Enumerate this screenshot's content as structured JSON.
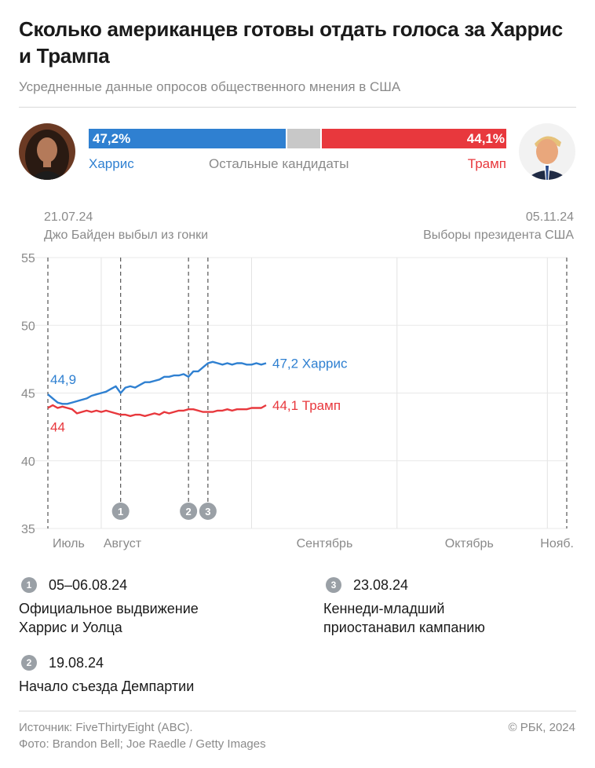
{
  "header": {
    "title": "Сколько американцев готовы отдать голоса за Харрис и Трампа",
    "subtitle": "Усредненные данные опросов общественного мнения в США"
  },
  "summary": {
    "harris_pct": "47,2%",
    "trump_pct": "44,1%",
    "harris_label": "Харрис",
    "others_label": "Остальные кандидаты",
    "trump_label": "Трамп",
    "harris_value": 47.2,
    "trump_value": 44.1,
    "harris_color": "#2f80d1",
    "others_color": "#c8c8c8",
    "trump_color": "#e8383d"
  },
  "events_top": {
    "left_date": "21.07.24",
    "left_text": "Джо Байден выбыл из гонки",
    "right_date": "05.11.24",
    "right_text": "Выборы президента США"
  },
  "chart_data": {
    "type": "line",
    "ylim": [
      35,
      55
    ],
    "y_ticks": [
      "55",
      "50",
      "45",
      "40",
      "35"
    ],
    "x_ticks": [
      "Июль",
      "Август",
      "Сентябрь",
      "Октябрь",
      "Нояб."
    ],
    "x_range": [
      "2024-07-21",
      "2024-11-05"
    ],
    "series": [
      {
        "name": "Харрис",
        "color": "#2f80d1",
        "start_label": "44,9",
        "end_label": "47,2 Харрис",
        "points": [
          [
            "2024-07-21",
            44.9
          ],
          [
            "2024-07-22",
            44.6
          ],
          [
            "2024-07-23",
            44.3
          ],
          [
            "2024-07-24",
            44.2
          ],
          [
            "2024-07-25",
            44.2
          ],
          [
            "2024-07-26",
            44.3
          ],
          [
            "2024-07-27",
            44.4
          ],
          [
            "2024-07-28",
            44.5
          ],
          [
            "2024-07-29",
            44.6
          ],
          [
            "2024-07-30",
            44.8
          ],
          [
            "2024-07-31",
            44.9
          ],
          [
            "2024-08-01",
            45.0
          ],
          [
            "2024-08-02",
            45.1
          ],
          [
            "2024-08-03",
            45.3
          ],
          [
            "2024-08-04",
            45.5
          ],
          [
            "2024-08-05",
            45.0
          ],
          [
            "2024-08-06",
            45.4
          ],
          [
            "2024-08-07",
            45.5
          ],
          [
            "2024-08-08",
            45.4
          ],
          [
            "2024-08-09",
            45.6
          ],
          [
            "2024-08-10",
            45.8
          ],
          [
            "2024-08-11",
            45.8
          ],
          [
            "2024-08-12",
            45.9
          ],
          [
            "2024-08-13",
            46.0
          ],
          [
            "2024-08-14",
            46.2
          ],
          [
            "2024-08-15",
            46.2
          ],
          [
            "2024-08-16",
            46.3
          ],
          [
            "2024-08-17",
            46.3
          ],
          [
            "2024-08-18",
            46.4
          ],
          [
            "2024-08-19",
            46.2
          ],
          [
            "2024-08-20",
            46.6
          ],
          [
            "2024-08-21",
            46.6
          ],
          [
            "2024-08-22",
            46.9
          ],
          [
            "2024-08-23",
            47.2
          ],
          [
            "2024-08-24",
            47.3
          ],
          [
            "2024-08-25",
            47.2
          ],
          [
            "2024-08-26",
            47.1
          ],
          [
            "2024-08-27",
            47.2
          ],
          [
            "2024-08-28",
            47.1
          ],
          [
            "2024-08-29",
            47.2
          ],
          [
            "2024-08-30",
            47.2
          ],
          [
            "2024-08-31",
            47.1
          ],
          [
            "2024-09-01",
            47.1
          ],
          [
            "2024-09-02",
            47.2
          ],
          [
            "2024-09-03",
            47.1
          ],
          [
            "2024-09-04",
            47.2
          ]
        ]
      },
      {
        "name": "Трамп",
        "color": "#e8383d",
        "start_label": "44",
        "end_label": "44,1 Трамп",
        "points": [
          [
            "2024-07-21",
            43.9
          ],
          [
            "2024-07-22",
            44.1
          ],
          [
            "2024-07-23",
            43.9
          ],
          [
            "2024-07-24",
            44.0
          ],
          [
            "2024-07-25",
            43.9
          ],
          [
            "2024-07-26",
            43.8
          ],
          [
            "2024-07-27",
            43.5
          ],
          [
            "2024-07-28",
            43.6
          ],
          [
            "2024-07-29",
            43.7
          ],
          [
            "2024-07-30",
            43.6
          ],
          [
            "2024-07-31",
            43.7
          ],
          [
            "2024-08-01",
            43.6
          ],
          [
            "2024-08-02",
            43.7
          ],
          [
            "2024-08-03",
            43.6
          ],
          [
            "2024-08-04",
            43.5
          ],
          [
            "2024-08-05",
            43.4
          ],
          [
            "2024-08-06",
            43.4
          ],
          [
            "2024-08-07",
            43.3
          ],
          [
            "2024-08-08",
            43.4
          ],
          [
            "2024-08-09",
            43.4
          ],
          [
            "2024-08-10",
            43.3
          ],
          [
            "2024-08-11",
            43.4
          ],
          [
            "2024-08-12",
            43.5
          ],
          [
            "2024-08-13",
            43.4
          ],
          [
            "2024-08-14",
            43.6
          ],
          [
            "2024-08-15",
            43.5
          ],
          [
            "2024-08-16",
            43.6
          ],
          [
            "2024-08-17",
            43.7
          ],
          [
            "2024-08-18",
            43.7
          ],
          [
            "2024-08-19",
            43.8
          ],
          [
            "2024-08-20",
            43.8
          ],
          [
            "2024-08-21",
            43.7
          ],
          [
            "2024-08-22",
            43.6
          ],
          [
            "2024-08-23",
            43.6
          ],
          [
            "2024-08-24",
            43.6
          ],
          [
            "2024-08-25",
            43.7
          ],
          [
            "2024-08-26",
            43.7
          ],
          [
            "2024-08-27",
            43.8
          ],
          [
            "2024-08-28",
            43.7
          ],
          [
            "2024-08-29",
            43.8
          ],
          [
            "2024-08-30",
            43.8
          ],
          [
            "2024-08-31",
            43.8
          ],
          [
            "2024-09-01",
            43.9
          ],
          [
            "2024-09-02",
            43.9
          ],
          [
            "2024-09-03",
            43.9
          ],
          [
            "2024-09-04",
            44.1
          ]
        ]
      }
    ],
    "markers": [
      {
        "id": "1",
        "date": "2024-08-05"
      },
      {
        "id": "2",
        "date": "2024-08-19"
      },
      {
        "id": "3",
        "date": "2024-08-23"
      }
    ],
    "grid": true
  },
  "notes": [
    {
      "id": "1",
      "date": "05–06.08.24",
      "text": "Официальное выдвижение Харрис и Уолца"
    },
    {
      "id": "2",
      "date": "19.08.24",
      "text": "Начало съезда Демпартии"
    },
    {
      "id": "3",
      "date": "23.08.24",
      "text": "Кеннеди-младший приостанавил кампанию"
    }
  ],
  "footer": {
    "source": "Источник: FiveThirtyEight (ABC).",
    "photo": "Фото: Brandon Bell; Joe Raedle / Getty Images",
    "copyright": "© РБК, 2024"
  }
}
